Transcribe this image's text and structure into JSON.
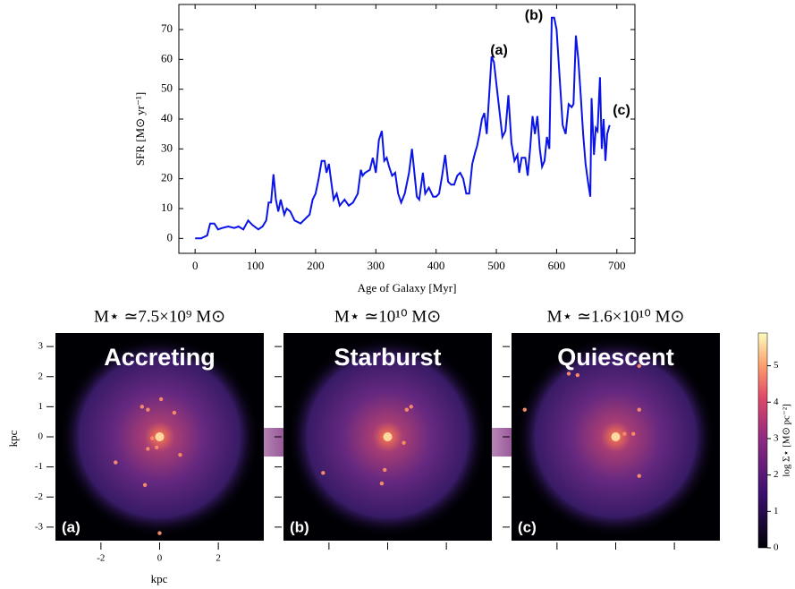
{
  "chart_data": [
    {
      "type": "line",
      "xlabel": "Age of Galaxy [Myr]",
      "ylabel": "SFR [M⊙ yr⁻¹]",
      "color": "#0a14e6",
      "x": [
        0,
        10,
        20,
        25,
        32,
        38,
        45,
        55,
        65,
        72,
        80,
        88,
        95,
        105,
        112,
        118,
        122,
        126,
        130,
        134,
        138,
        142,
        148,
        152,
        158,
        165,
        175,
        185,
        190,
        195,
        200,
        205,
        210,
        215,
        218,
        222,
        226,
        230,
        235,
        240,
        248,
        255,
        262,
        270,
        275,
        278,
        282,
        290,
        295,
        300,
        305,
        310,
        314,
        318,
        322,
        327,
        332,
        337,
        342,
        348,
        355,
        360,
        364,
        368,
        372,
        378,
        382,
        388,
        395,
        400,
        405,
        410,
        415,
        420,
        425,
        430,
        435,
        440,
        445,
        450,
        455,
        460,
        465,
        468,
        472,
        476,
        480,
        484,
        488,
        492,
        496,
        500,
        505,
        510,
        515,
        520,
        525,
        530,
        535,
        538,
        542,
        548,
        552,
        556,
        560,
        564,
        568,
        572,
        576,
        580,
        584,
        588,
        592,
        596,
        600,
        605,
        610,
        615,
        620,
        625,
        628,
        632,
        636,
        640,
        644,
        648,
        652,
        656,
        658,
        662,
        665,
        668,
        672,
        675,
        678,
        681,
        684,
        688
      ],
      "values": [
        0,
        0,
        1,
        5,
        5,
        3,
        3.5,
        4,
        3.5,
        4,
        3,
        6,
        4.5,
        3,
        4,
        6,
        12,
        12,
        21.5,
        13,
        9,
        13,
        8,
        10,
        9,
        6,
        5,
        7,
        8,
        13,
        15,
        20,
        26,
        26,
        22,
        25,
        19,
        13,
        15,
        11,
        13,
        11,
        12,
        15,
        23,
        21,
        22,
        23,
        27,
        22,
        33,
        36,
        26,
        27,
        24,
        21,
        22,
        15,
        12,
        15,
        22,
        30,
        22,
        14,
        13,
        22,
        15,
        17,
        14,
        14,
        15,
        21,
        28,
        19,
        18,
        18,
        21,
        22,
        20,
        15,
        15,
        25,
        29,
        31,
        35,
        40,
        42,
        35,
        48,
        61,
        59,
        52,
        43,
        34,
        36,
        48,
        32,
        26,
        28,
        22,
        27,
        27,
        21,
        30,
        41,
        35,
        41,
        30,
        24,
        26,
        34,
        30,
        74,
        74,
        70,
        54,
        38,
        35,
        45,
        44,
        45,
        68,
        60,
        48,
        35,
        25,
        19,
        14,
        47,
        28,
        37,
        36,
        54,
        30,
        40,
        26,
        35,
        38
      ],
      "xlim": [
        -27,
        730
      ],
      "ylim": [
        -5,
        78.4
      ],
      "xticks": [
        0,
        100,
        200,
        300,
        400,
        500,
        600,
        700
      ],
      "yticks": [
        0,
        10,
        20,
        30,
        40,
        50,
        60,
        70
      ],
      "annotations": [
        "(a)",
        "(b)",
        "(c)"
      ]
    },
    {
      "type": "image-grid",
      "xlabel": "kpc",
      "ylabel": "kpc",
      "xlim": [
        -3.55,
        3.55
      ],
      "ylim": [
        -3.45,
        3.45
      ],
      "xticks": [
        -2,
        0,
        2
      ],
      "yticks": [
        -3,
        -2,
        -1,
        0,
        1,
        2,
        3
      ],
      "panels": [
        {
          "title": "M⋆ ≃7.5×10⁹ M⊙",
          "label": "Accreting",
          "tag": "(a)"
        },
        {
          "title": "M⋆ ≃10¹⁰ M⊙",
          "label": "Starburst",
          "tag": "(b)"
        },
        {
          "title": "M⋆ ≃1.6×10¹⁰ M⊙",
          "label": "Quiescent",
          "tag": "(c)"
        }
      ],
      "colorbar": {
        "label": "log Σ⋆ [M⊙ pc⁻²]",
        "lim": [
          0,
          5.9
        ],
        "ticks": [
          0,
          1,
          2,
          3,
          4,
          5
        ]
      }
    }
  ]
}
